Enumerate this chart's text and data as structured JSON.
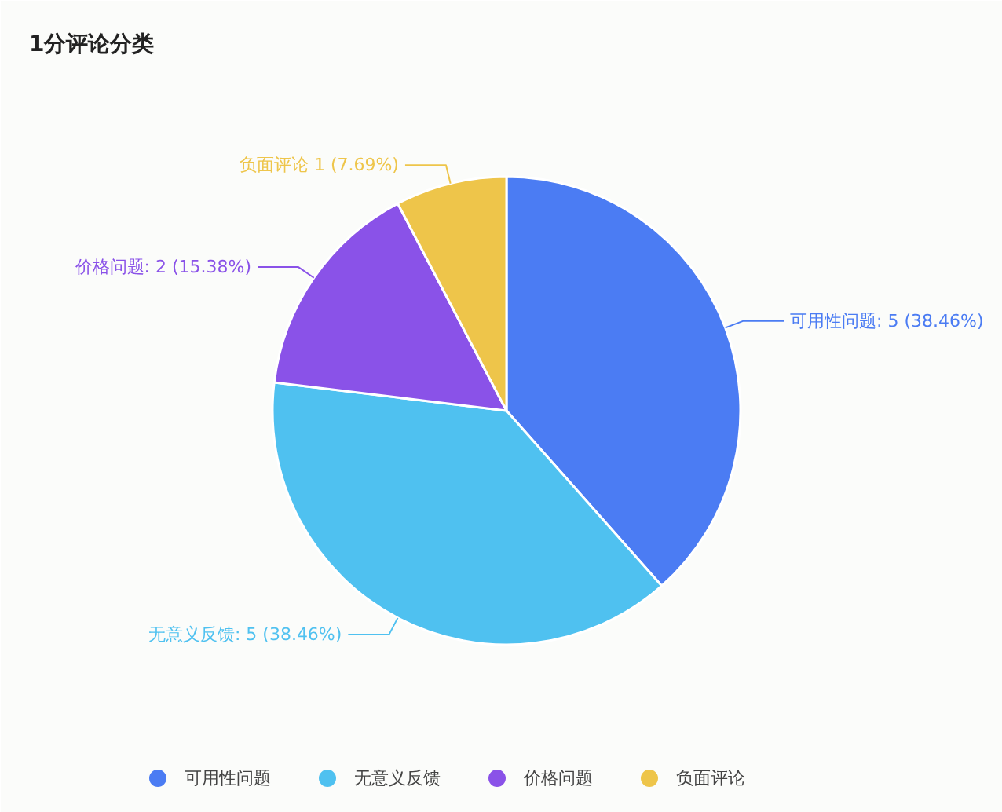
{
  "chart_data": {
    "type": "pie",
    "title": "1分评论分类",
    "categories": [
      "可用性问题",
      "无意义反馈",
      "价格问题",
      "负面评论"
    ],
    "values": [
      5,
      5,
      2,
      1
    ],
    "colors": [
      "#4b7cf3",
      "#4fc1f0",
      "#8a52e8",
      "#eec54a"
    ],
    "value_labels": [
      "可用性问题: 5 (38.46%)",
      "无意义反馈: 5 (38.46%)",
      "价格问题: 2 (15.38%)",
      "负面评论 1 (7.69%)"
    ],
    "legend": "bottom"
  }
}
